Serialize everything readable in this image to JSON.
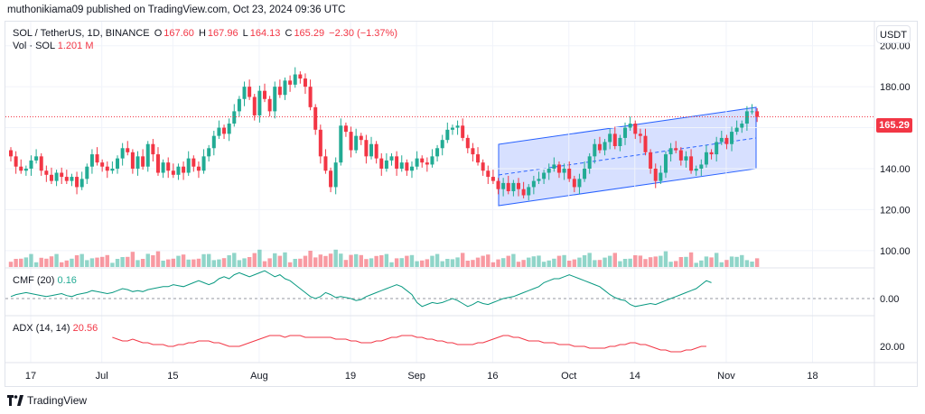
{
  "header": {
    "publisher_line": "muthonikiama09 published on TradingView.com, Oct 23, 2024 09:36 UTC"
  },
  "legend": {
    "symbol": "SOL / TetherUS, 1D, BINANCE",
    "o_label": "O",
    "o_value": "167.60",
    "h_label": "H",
    "h_value": "167.96",
    "l_label": "L",
    "l_value": "164.13",
    "c_label": "C",
    "c_value": "165.29",
    "change": "−2.30 (−1.37%)",
    "vol_label": "Vol · SOL",
    "vol_value": "1.201 M"
  },
  "indicators": {
    "cmf_label": "CMF (20)",
    "cmf_value": "0.16",
    "adx_label": "ADX (14, 14)",
    "adx_value": "20.56"
  },
  "currency_button": "USDT",
  "last_price_tag": "165.29",
  "footer": {
    "brand": "TradingView"
  },
  "colors": {
    "up": "#22ab94",
    "down": "#f23645",
    "channel_fill": "#c9d6ff",
    "channel_line": "#2962ff",
    "cmf_line": "#089981",
    "adx_line": "#f23645"
  },
  "chart_data": {
    "type": "candlestick",
    "symbol": "SOL / TetherUS",
    "interval": "1D",
    "y_ticks": [
      "200.00",
      "180.00",
      "160.00",
      "140.00",
      "120.00",
      "100.00"
    ],
    "ylim": [
      92,
      210
    ],
    "x_ticks": [
      {
        "label": "17",
        "day": 0
      },
      {
        "label": "Jul",
        "day": 14
      },
      {
        "label": "15",
        "day": 28
      },
      {
        "label": "Aug",
        "day": 45
      },
      {
        "label": "19",
        "day": 63
      },
      {
        "label": "Sep",
        "day": 76
      },
      {
        "label": "16",
        "day": 91
      },
      {
        "label": "Oct",
        "day": 106
      },
      {
        "label": "14",
        "day": 119
      },
      {
        "label": "Nov",
        "day": 137
      },
      {
        "label": "18",
        "day": 154
      }
    ],
    "closes": [
      146,
      141,
      139,
      140,
      144,
      146,
      139,
      137,
      134,
      138,
      136,
      134,
      136,
      131,
      135,
      141,
      147,
      143,
      141,
      139,
      140,
      145,
      150,
      148,
      140,
      146,
      141,
      152,
      147,
      138,
      143,
      139,
      137,
      141,
      138,
      145,
      141,
      139,
      146,
      150,
      156,
      160,
      157,
      162,
      168,
      174,
      180,
      175,
      166,
      178,
      174,
      168,
      180,
      176,
      183,
      181,
      186,
      184,
      180,
      170,
      159,
      146,
      139,
      131,
      143,
      161,
      158,
      149,
      156,
      154,
      146,
      152,
      145,
      140,
      144,
      146,
      140,
      143,
      139,
      141,
      145,
      143,
      142,
      146,
      150,
      154,
      159,
      160,
      161,
      155,
      150,
      147,
      143,
      139,
      136,
      134,
      130,
      133,
      129,
      133,
      130,
      127,
      131,
      134,
      135,
      138,
      140,
      142,
      138,
      140,
      135,
      131,
      135,
      140,
      146,
      152,
      149,
      153,
      157,
      151,
      155,
      160,
      162,
      157,
      156,
      148,
      140,
      134,
      138,
      147,
      150,
      149,
      144,
      146,
      139,
      140,
      142,
      148,
      147,
      153,
      155,
      152,
      158,
      160,
      162,
      168,
      168,
      165.29
    ],
    "cmf": [
      0.02,
      0.04,
      0.05,
      0.06,
      0.05,
      0.04,
      0.03,
      0.02,
      0.03,
      0.04,
      0.05,
      0.03,
      0.02,
      0.04,
      0.05,
      0.06,
      0.08,
      0.07,
      0.06,
      0.05,
      0.06,
      0.08,
      0.1,
      0.09,
      0.07,
      0.08,
      0.07,
      0.09,
      0.1,
      0.11,
      0.12,
      0.12,
      0.14,
      0.13,
      0.12,
      0.14,
      0.16,
      0.18,
      0.16,
      0.14,
      0.16,
      0.2,
      0.22,
      0.2,
      0.24,
      0.26,
      0.24,
      0.22,
      0.24,
      0.26,
      0.28,
      0.25,
      0.22,
      0.24,
      0.2,
      0.18,
      0.14,
      0.1,
      0.06,
      0.02,
      0.0,
      0.02,
      0.06,
      0.04,
      0.01,
      0.02,
      0.01,
      0.0,
      -0.02,
      -0.01,
      0.02,
      0.04,
      0.06,
      0.08,
      0.1,
      0.12,
      0.14,
      0.12,
      0.08,
      0.04,
      -0.04,
      -0.08,
      -0.06,
      -0.04,
      -0.05,
      -0.04,
      -0.02,
      0.0,
      -0.02,
      -0.05,
      -0.08,
      -0.06,
      -0.03,
      -0.05,
      -0.06,
      -0.04,
      -0.02,
      0.0,
      0.01,
      0.02,
      0.04,
      0.06,
      0.08,
      0.1,
      0.12,
      0.16,
      0.18,
      0.2,
      0.2,
      0.22,
      0.24,
      0.22,
      0.2,
      0.18,
      0.16,
      0.14,
      0.12,
      0.08,
      0.04,
      0.01,
      -0.01,
      -0.02,
      -0.06,
      -0.08,
      -0.07,
      -0.06,
      -0.05,
      -0.06,
      -0.04,
      -0.02,
      0.0,
      0.02,
      0.04,
      0.06,
      0.08,
      0.1,
      0.14,
      0.18,
      0.16
    ],
    "adx": [
      26,
      25,
      24,
      24,
      25,
      24,
      23,
      23,
      22,
      22,
      22,
      21,
      21,
      22,
      22,
      23,
      23,
      24,
      24,
      24,
      23,
      23,
      22,
      21,
      21,
      21,
      22,
      23,
      24,
      25,
      26,
      27,
      27,
      27,
      26,
      27,
      27,
      27,
      26,
      26,
      26,
      26,
      26,
      26,
      25,
      25,
      25,
      24,
      24,
      23,
      23,
      23,
      24,
      24,
      25,
      26,
      26,
      27,
      27,
      27,
      26,
      26,
      25,
      25,
      24,
      24,
      23,
      23,
      22,
      22,
      22,
      22,
      23,
      23,
      24,
      25,
      26,
      27,
      27,
      26,
      26,
      25,
      24,
      24,
      24,
      23,
      23,
      23,
      22,
      22,
      22,
      21,
      21,
      21,
      20,
      20,
      20,
      20,
      21,
      21,
      22,
      22,
      23,
      23,
      22,
      22,
      21,
      20,
      19,
      19,
      18,
      18,
      18,
      19,
      19,
      20,
      21,
      21
    ]
  }
}
